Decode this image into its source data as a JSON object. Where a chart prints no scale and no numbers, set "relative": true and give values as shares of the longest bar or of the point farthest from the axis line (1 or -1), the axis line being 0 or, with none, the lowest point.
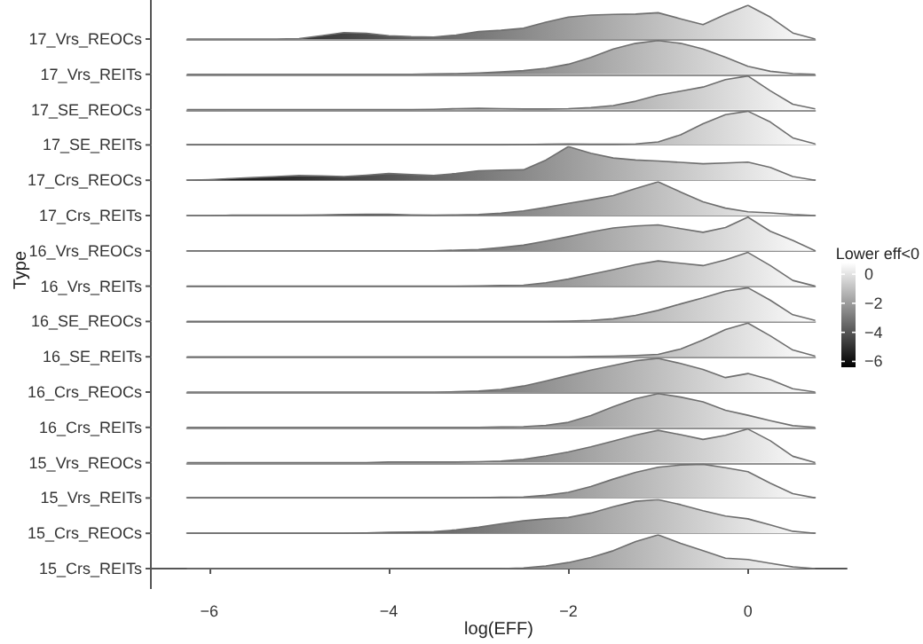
{
  "chart_data": [
    {
      "type": "area",
      "title": "17_Vrs_REOCs",
      "categories": [
        null,
        null,
        null,
        null,
        null,
        null,
        null,
        null,
        null,
        null,
        null,
        null,
        null,
        null,
        null,
        null,
        null,
        null,
        null,
        null,
        null,
        null,
        null,
        null,
        null,
        null,
        null,
        null,
        null
      ],
      "values": [
        0,
        0,
        0,
        0,
        0,
        0.01,
        0.1,
        0.19,
        0.17,
        0.1,
        0.07,
        0.06,
        0.12,
        0.22,
        0.26,
        0.32,
        0.5,
        0.65,
        0.71,
        0.73,
        0.74,
        0.78,
        0.6,
        0.43,
        0.73,
        1,
        0.65,
        0.18,
        0
      ],
      "color": "#6e6e6e",
      "relative": true,
      "tick_labels": false
    },
    {
      "type": "area",
      "title": "17_Vrs_REITs",
      "categories": [
        null,
        null,
        null,
        null,
        null,
        null,
        null,
        null,
        null,
        null,
        null,
        null,
        null,
        null,
        null,
        null,
        null,
        null,
        null,
        null,
        null,
        null,
        null,
        null,
        null,
        null,
        null,
        null,
        null
      ],
      "values": [
        0,
        0,
        0,
        0,
        0,
        0,
        0,
        0,
        0,
        0,
        0,
        0.01,
        0.02,
        0.04,
        0.07,
        0.11,
        0.18,
        0.3,
        0.5,
        0.75,
        0.92,
        1,
        0.92,
        0.75,
        0.51,
        0.24,
        0.09,
        0.02,
        0
      ],
      "color": "#6e6e6e",
      "relative": true,
      "tick_labels": false
    },
    {
      "type": "area",
      "title": "17_SE_REOCs",
      "categories": [
        null,
        null,
        null,
        null,
        null,
        null,
        null,
        null,
        null,
        null,
        null,
        null,
        null,
        null,
        null,
        null,
        null,
        null,
        null,
        null,
        null,
        null,
        null,
        null,
        null,
        null,
        null,
        null,
        null
      ],
      "values": [
        0,
        0,
        0,
        0,
        0,
        0,
        0,
        0,
        0,
        0,
        0,
        0.01,
        0.03,
        0.04,
        0.03,
        0.02,
        0.02,
        0.03,
        0.06,
        0.12,
        0.25,
        0.43,
        0.55,
        0.67,
        0.89,
        1,
        0.56,
        0.16,
        0.02
      ],
      "color": "#6e6e6e",
      "relative": true,
      "tick_labels": false
    },
    {
      "type": "area",
      "title": "17_SE_REITs",
      "categories": [
        null,
        null,
        null,
        null,
        null,
        null,
        null,
        null,
        null,
        null,
        null,
        null,
        null,
        null,
        null,
        null,
        null,
        null,
        null,
        null,
        null,
        null,
        null,
        null,
        null,
        null,
        null,
        null,
        null
      ],
      "values": [
        0,
        0,
        0,
        0,
        0,
        0,
        0,
        0,
        0,
        0,
        0,
        0,
        0,
        0,
        0,
        0.01,
        0.02,
        0.03,
        0.02,
        0.02,
        0.03,
        0.09,
        0.3,
        0.63,
        0.9,
        1,
        0.68,
        0.21,
        0.03
      ],
      "color": "#6e6e6e",
      "relative": true,
      "tick_labels": false
    },
    {
      "type": "area",
      "title": "17_Crs_REOCs",
      "categories": [
        null,
        null,
        null,
        null,
        null,
        null,
        null,
        null,
        null,
        null,
        null,
        null,
        null,
        null,
        null,
        null,
        null,
        null,
        null,
        null,
        null,
        null,
        null,
        null,
        null,
        null,
        null,
        null,
        null
      ],
      "values": [
        0,
        0.02,
        0.05,
        0.08,
        0.11,
        0.14,
        0.13,
        0.11,
        0.15,
        0.2,
        0.17,
        0.14,
        0.2,
        0.28,
        0.3,
        0.31,
        0.6,
        1,
        0.8,
        0.66,
        0.6,
        0.57,
        0.53,
        0.49,
        0.51,
        0.54,
        0.38,
        0.11,
        0
      ],
      "color": "#6e6e6e",
      "relative": true,
      "tick_labels": false
    },
    {
      "type": "area",
      "title": "17_Crs_REITs",
      "categories": [
        null,
        null,
        null,
        null,
        null,
        null,
        null,
        null,
        null,
        null,
        null,
        null,
        null,
        null,
        null,
        null,
        null,
        null,
        null,
        null,
        null,
        null,
        null,
        null,
        null,
        null,
        null,
        null,
        null
      ],
      "values": [
        0,
        0,
        0.01,
        0.01,
        0.01,
        0.01,
        0.02,
        0.03,
        0.04,
        0.04,
        0.02,
        0.01,
        0.02,
        0.03,
        0.07,
        0.14,
        0.24,
        0.36,
        0.47,
        0.59,
        0.8,
        1,
        0.7,
        0.41,
        0.22,
        0.11,
        0.08,
        0.03,
        0
      ],
      "color": "#6e6e6e",
      "relative": true,
      "tick_labels": false
    },
    {
      "type": "area",
      "title": "16_Vrs_REOCs",
      "categories": [
        null,
        null,
        null,
        null,
        null,
        null,
        null,
        null,
        null,
        null,
        null,
        null,
        null,
        null,
        null,
        null,
        null,
        null,
        null,
        null,
        null,
        null,
        null,
        null,
        null,
        null,
        null,
        null,
        null
      ],
      "values": [
        0,
        0,
        0,
        0,
        0,
        0,
        0,
        0,
        0,
        0,
        0,
        0,
        0.02,
        0.04,
        0.1,
        0.17,
        0.29,
        0.42,
        0.56,
        0.68,
        0.74,
        0.77,
        0.66,
        0.55,
        0.69,
        1,
        0.58,
        0.31,
        0
      ],
      "color": "#6e6e6e",
      "relative": true,
      "tick_labels": false
    },
    {
      "type": "area",
      "title": "16_Vrs_REITs",
      "ylabel": "Type",
      "clabel": "Lower eff<0",
      "clim": [
        -6.4,
        0.8
      ],
      "cticks": [
        0,
        -2,
        -4,
        -6
      ],
      "categories": [
        null,
        null,
        null,
        null,
        null,
        null,
        null,
        null,
        null,
        null,
        null,
        null,
        null,
        null,
        null,
        null,
        null,
        null,
        null,
        null,
        null,
        null,
        null,
        null,
        null,
        null,
        null,
        null,
        null
      ],
      "values": [
        0,
        0,
        0,
        0,
        0,
        0,
        0,
        0,
        0,
        0,
        0,
        0,
        0,
        0.01,
        0.02,
        0.03,
        0.1,
        0.21,
        0.35,
        0.49,
        0.64,
        0.75,
        0.68,
        0.61,
        0.78,
        1,
        0.61,
        0.17,
        0
      ],
      "color": "#6e6e6e",
      "relative": true,
      "tick_labels": false
    },
    {
      "type": "area",
      "title": "16_SE_REOCs",
      "categories": [
        null,
        null,
        null,
        null,
        null,
        null,
        null,
        null,
        null,
        null,
        null,
        null,
        null,
        null,
        null,
        null,
        null,
        null,
        null,
        null,
        null,
        null,
        null,
        null,
        null,
        null,
        null,
        null,
        null
      ],
      "values": [
        0,
        0,
        0,
        0,
        0,
        0,
        0,
        0,
        0,
        0,
        0,
        0,
        0,
        0,
        0,
        0,
        0,
        0.01,
        0.03,
        0.08,
        0.18,
        0.33,
        0.52,
        0.7,
        0.9,
        1,
        0.63,
        0.2,
        0.03
      ],
      "color": "#6e6e6e",
      "relative": true,
      "tick_labels": false
    },
    {
      "type": "area",
      "title": "16_SE_REITs",
      "categories": [
        null,
        null,
        null,
        null,
        null,
        null,
        null,
        null,
        null,
        null,
        null,
        null,
        null,
        null,
        null,
        null,
        null,
        null,
        null,
        null,
        null,
        null,
        null,
        null,
        null,
        null,
        null,
        null,
        null
      ],
      "values": [
        0,
        0,
        0,
        0,
        0,
        0,
        0,
        0,
        0,
        0,
        0,
        0,
        0,
        0,
        0,
        0,
        0,
        0,
        0.01,
        0.02,
        0.04,
        0.07,
        0.23,
        0.5,
        0.81,
        1,
        0.62,
        0.2,
        0.02
      ],
      "color": "#6e6e6e",
      "relative": true,
      "tick_labels": false
    },
    {
      "type": "area",
      "title": "16_Crs_REOCs",
      "categories": [
        null,
        null,
        null,
        null,
        null,
        null,
        null,
        null,
        null,
        null,
        null,
        null,
        null,
        null,
        null,
        null,
        null,
        null,
        null,
        null,
        null,
        null,
        null,
        null,
        null,
        null,
        null,
        null,
        null
      ],
      "values": [
        0,
        0,
        0,
        0,
        0,
        0,
        0,
        0,
        0,
        0,
        0,
        0,
        0.01,
        0.03,
        0.08,
        0.18,
        0.33,
        0.49,
        0.65,
        0.79,
        0.93,
        1,
        0.85,
        0.67,
        0.43,
        0.55,
        0.37,
        0.1,
        0
      ],
      "color": "#6e6e6e",
      "relative": true,
      "tick_labels": false
    },
    {
      "type": "area",
      "title": "16_Crs_REITs",
      "categories": [
        null,
        null,
        null,
        null,
        null,
        null,
        null,
        null,
        null,
        null,
        null,
        null,
        null,
        null,
        null,
        null,
        null,
        null,
        null,
        null,
        null,
        null,
        null,
        null,
        null,
        null,
        null,
        null,
        null
      ],
      "values": [
        0,
        0,
        0,
        0,
        0,
        0,
        0,
        0,
        0,
        0,
        0,
        0,
        0,
        0,
        0.01,
        0.02,
        0.06,
        0.15,
        0.35,
        0.61,
        0.85,
        1,
        0.9,
        0.76,
        0.51,
        0.36,
        0.2,
        0.05,
        0
      ],
      "color": "#6e6e6e",
      "relative": true,
      "tick_labels": false
    },
    {
      "type": "area",
      "title": "15_Vrs_REOCs",
      "categories": [
        null,
        null,
        null,
        null,
        null,
        null,
        null,
        null,
        null,
        null,
        null,
        null,
        null,
        null,
        null,
        null,
        null,
        null,
        null,
        null,
        null,
        null,
        null,
        null,
        null,
        null,
        null,
        null,
        null
      ],
      "values": [
        0,
        0,
        0,
        0,
        0,
        0,
        0,
        0,
        0,
        0.02,
        0.02,
        0.02,
        0.02,
        0.03,
        0.05,
        0.1,
        0.2,
        0.32,
        0.47,
        0.64,
        0.82,
        0.96,
        0.83,
        0.69,
        0.81,
        1,
        0.65,
        0.19,
        0
      ],
      "color": "#6e6e6e",
      "relative": true,
      "tick_labels": false
    },
    {
      "type": "area",
      "title": "15_Vrs_REITs",
      "categories": [
        null,
        null,
        null,
        null,
        null,
        null,
        null,
        null,
        null,
        null,
        null,
        null,
        null,
        null,
        null,
        null,
        null,
        null,
        null,
        null,
        null,
        null,
        null,
        null,
        null,
        null,
        null,
        null,
        null
      ],
      "values": [
        0,
        0,
        0,
        0,
        0,
        0,
        0,
        0,
        0,
        0,
        0,
        0,
        0,
        0.01,
        0.02,
        0.03,
        0.08,
        0.17,
        0.34,
        0.56,
        0.76,
        0.91,
        0.98,
        1,
        0.9,
        0.78,
        0.44,
        0.13,
        0
      ],
      "color": "#6e6e6e",
      "relative": true,
      "tick_labels": false
    },
    {
      "type": "area",
      "title": "15_Crs_REOCs",
      "categories": [
        null,
        null,
        null,
        null,
        null,
        null,
        null,
        null,
        null,
        null,
        null,
        null,
        null,
        null,
        null,
        null,
        null,
        null,
        null,
        null,
        null,
        null,
        null,
        null,
        null,
        null,
        null,
        null,
        null
      ],
      "values": [
        0,
        0,
        0,
        0,
        0,
        0,
        0,
        0,
        0.01,
        0.03,
        0.04,
        0.05,
        0.1,
        0.18,
        0.28,
        0.37,
        0.43,
        0.47,
        0.6,
        0.79,
        0.95,
        1,
        0.85,
        0.67,
        0.51,
        0.43,
        0.25,
        0.06,
        0
      ],
      "color": "#6e6e6e",
      "relative": true,
      "tick_labels": false
    },
    {
      "type": "area",
      "title": "15_Crs_REITs",
      "x": [
        -6.25,
        -6,
        -5.75,
        -5.5,
        -5.25,
        -5,
        -4.75,
        -4.5,
        -4.25,
        -4,
        -3.75,
        -3.5,
        -3.25,
        -3,
        -2.75,
        -2.5,
        -2.25,
        -2,
        -1.75,
        -1.5,
        -1.25,
        -1,
        -0.75,
        -0.5,
        -0.25,
        0,
        0.25,
        0.5,
        0.75
      ],
      "values": [
        0,
        0,
        0,
        0,
        0,
        0,
        0,
        0,
        0,
        0,
        0,
        0,
        0,
        0,
        0,
        0.02,
        0.08,
        0.18,
        0.33,
        0.53,
        0.8,
        1,
        0.75,
        0.53,
        0.31,
        0.27,
        0.16,
        0.05,
        0
      ],
      "color": "#6e6e6e",
      "relative": true,
      "xlim": [
        -6.65,
        1.1
      ],
      "tick_labels": "x",
      "xticks": [
        -6,
        -4,
        -2,
        0
      ],
      "xlabel": "log(EFF)"
    }
  ]
}
